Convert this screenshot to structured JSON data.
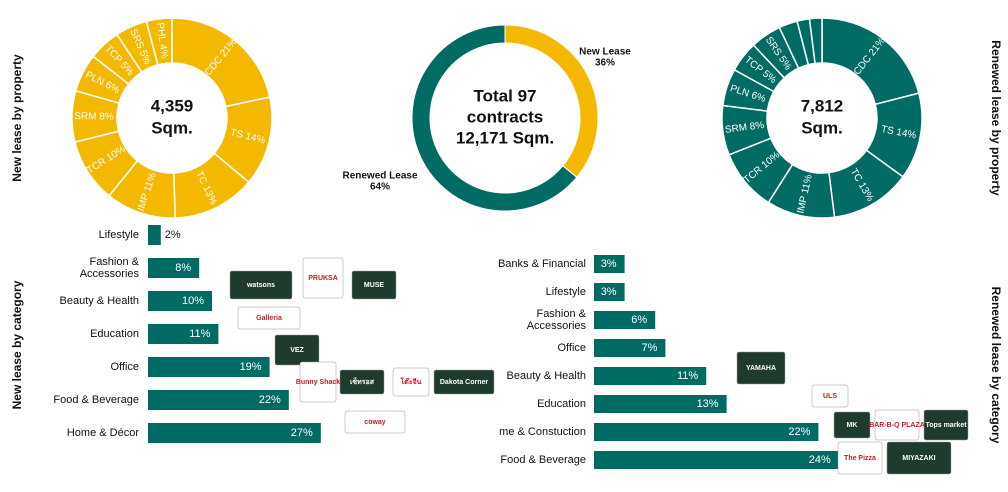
{
  "chart_data": [
    {
      "type": "pie",
      "side_label": "New lease by property",
      "center_label": [
        "4,359",
        "Sqm."
      ],
      "color": "#f5b800",
      "label_color": "#ffffff",
      "values": [
        21,
        14,
        13,
        11,
        10,
        8,
        6,
        5,
        5,
        4
      ],
      "value_labels": [
        "CDC 21%",
        "TS 14%",
        "TC 13%",
        "IMP 11%",
        "TCR 10%",
        "SRM 8%",
        "PLN 6%",
        "TCP 5%",
        "SRS 5%",
        "PHL 4%"
      ]
    },
    {
      "type": "ring",
      "center_label": [
        "Total 97",
        "contracts",
        "12,171 Sqm."
      ],
      "categories": [
        "New Lease",
        "Renewed Lease"
      ],
      "values": [
        36,
        64
      ],
      "value_labels": [
        "36%",
        "64%"
      ],
      "colors": [
        "#f5b800",
        "#006b63"
      ]
    },
    {
      "type": "pie",
      "side_label": "Renewed lease by property",
      "center_label": [
        "7,812",
        "Sqm."
      ],
      "color": "#006b63",
      "label_color": "#ffffff",
      "values": [
        21,
        14,
        13,
        11,
        10,
        8,
        6,
        5,
        5,
        3,
        2,
        2
      ],
      "value_labels": [
        "CDC 21%",
        "TS 14%",
        "TC 13%",
        "IMP 11%",
        "TCR 10%",
        "SRM 8%",
        "PLN 6%",
        "TCP 5%",
        "SRS 5%",
        null,
        null,
        null
      ]
    },
    {
      "type": "hbar",
      "side_label": "New lease by category",
      "color": "#006b63",
      "categories": [
        "Lifestyle",
        "Fashion &\nAccessories",
        "Beauty & Health",
        "Education",
        "Office",
        "Food & Beverage",
        "Home & Décor"
      ],
      "values": [
        2,
        8,
        10,
        11,
        19,
        22,
        27
      ],
      "value_labels": [
        "2%",
        "8%",
        "10%",
        "11%",
        "19%",
        "22%",
        "27%"
      ],
      "logos": [
        "watsons",
        "PRUKSA",
        "MUSE",
        "Galleria",
        "VEZ",
        "Bunny Shack",
        "เซ็ทรอส",
        "โต๊ะจีน",
        "Dakota Corner",
        "coway"
      ]
    },
    {
      "type": "hbar",
      "side_label": "Renewed lease by category",
      "color": "#006b63",
      "categories": [
        "Banks & Financial",
        "Lifestyle",
        "Fashion &\nAccessories",
        "Office",
        "Beauty & Health",
        "Education",
        "me & Constuction",
        "Food & Beverage"
      ],
      "values": [
        3,
        3,
        6,
        7,
        11,
        13,
        22,
        24
      ],
      "value_labels": [
        "3%",
        "3%",
        "6%",
        "7%",
        "11%",
        "13%",
        "22%",
        "24%"
      ],
      "logos": [
        "YAMAHA",
        "ULS",
        "MK",
        "BAR-B-Q PLAZA",
        "Tops market",
        "The Pizza",
        "MIYAZAKI"
      ]
    }
  ]
}
